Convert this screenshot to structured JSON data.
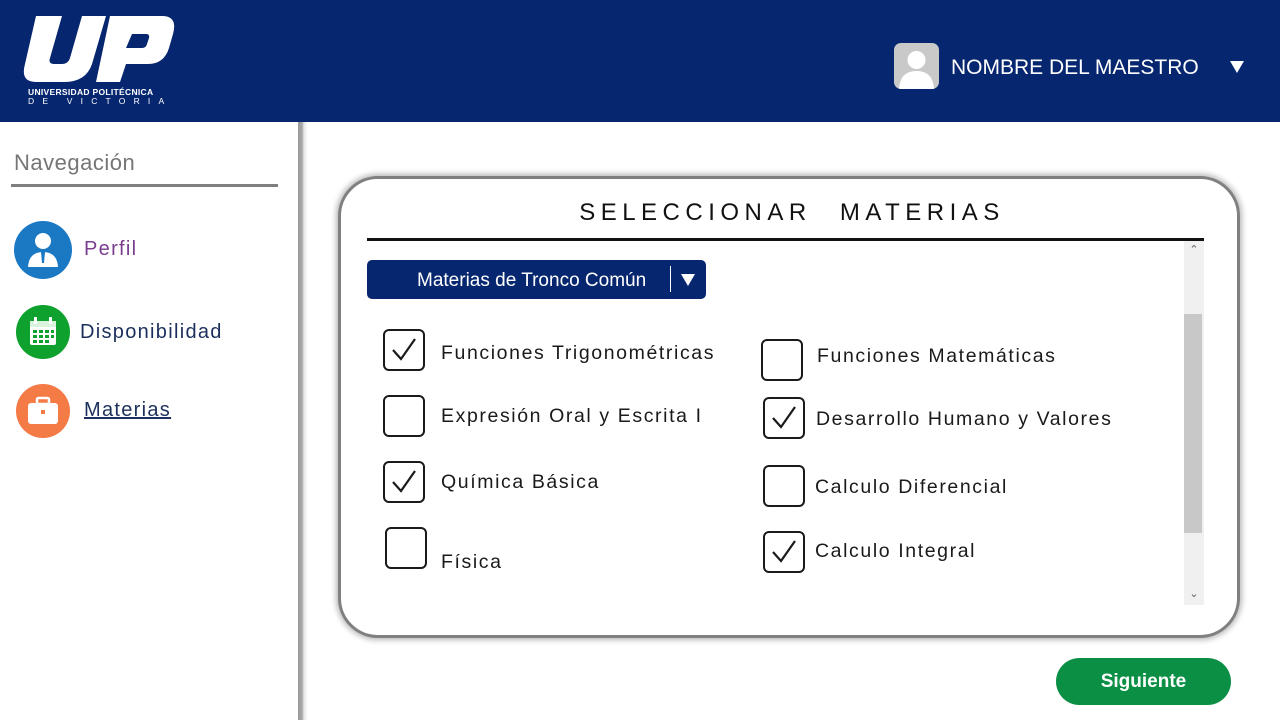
{
  "header": {
    "logo": {
      "mark": "UP",
      "line1": "UNIVERSIDAD POLITÉCNICA",
      "line2": "DE VICTORIA"
    },
    "user_name": "NOMBRE DEL MAESTRO",
    "user_menu_icon": "caret-down-icon",
    "avatar_icon": "user-avatar-icon",
    "bg_color": "#06266f"
  },
  "sidebar": {
    "title": "Navegación",
    "items": [
      {
        "label": "Perfil",
        "icon": "person-icon",
        "color": "#1b79c4",
        "label_color": "#7a3d8f",
        "active": false
      },
      {
        "label": "Disponibilidad",
        "icon": "calendar-icon",
        "color": "#0ea12e",
        "label_color": "#1c2f5c",
        "active": false
      },
      {
        "label": "Materias",
        "icon": "briefcase-icon",
        "color": "#f47b46",
        "label_color": "#1c2f5c",
        "active": true
      }
    ]
  },
  "main": {
    "title": "SELECCIONAR MATERIAS",
    "dropdown": {
      "selected": "Materias de Tronco Común"
    },
    "subjects": [
      {
        "label": "Funciones Trigonométricas",
        "checked": true
      },
      {
        "label": "Expresión Oral y Escrita I",
        "checked": false
      },
      {
        "label": "Química Básica",
        "checked": true
      },
      {
        "label": "Física",
        "checked": false
      },
      {
        "label": "Funciones Matemáticas",
        "checked": false
      },
      {
        "label": "Desarrollo Humano y Valores",
        "checked": true
      },
      {
        "label": "Calculo Diferencial",
        "checked": false
      },
      {
        "label": "Calculo Integral",
        "checked": true
      }
    ]
  },
  "footer": {
    "next_label": "Siguiente",
    "next_color": "#0b8f44"
  }
}
